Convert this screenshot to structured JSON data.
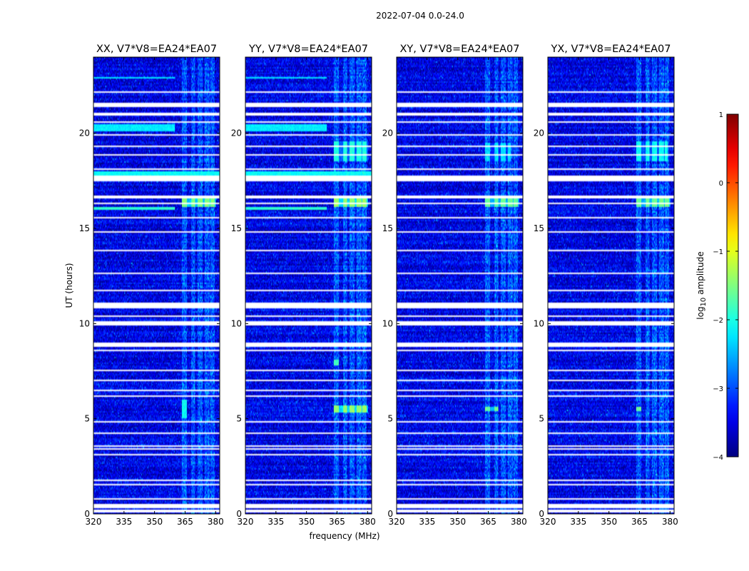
{
  "chart_data": {
    "type": "heatmap",
    "suptitle": "2022-07-04 0.0-24.0",
    "xlabel": "frequency (MHz)",
    "ylabel": "UT (hours)",
    "xlim": [
      320,
      382
    ],
    "ylim": [
      0,
      24
    ],
    "xticks": [
      320,
      335,
      350,
      365,
      380
    ],
    "yticks": [
      0,
      5,
      10,
      15,
      20
    ],
    "colorbar": {
      "label_prefix": "log",
      "label_sub": "10",
      "label_suffix": " amplitude",
      "range": [
        -4,
        1
      ],
      "ticks": [
        1,
        0,
        -1,
        -2,
        -3,
        -4
      ],
      "tick_labels": [
        "1",
        "0",
        "−1",
        "−2",
        "−3",
        "−4"
      ],
      "colormap": "jet"
    },
    "background_level": -3.5,
    "rfi_band_mhz": [
      [
        363.5,
        366
      ],
      [
        368,
        370
      ],
      [
        371,
        373.5
      ],
      [
        374.5,
        377
      ],
      [
        377.5,
        379.5
      ]
    ],
    "flagged_hours": [
      [
        0.1,
        0.2
      ],
      [
        0.3,
        0.55
      ],
      [
        0.75,
        0.85
      ],
      [
        1.5,
        1.58
      ],
      [
        1.75,
        1.8
      ],
      [
        2.0,
        2.06
      ],
      [
        3.1,
        3.18
      ],
      [
        3.4,
        3.48
      ],
      [
        3.55,
        3.6
      ],
      [
        4.2,
        4.25
      ],
      [
        4.8,
        4.88
      ],
      [
        5.6,
        5.65
      ],
      [
        6.15,
        6.25
      ],
      [
        6.45,
        6.5
      ],
      [
        7.0,
        7.05
      ],
      [
        7.5,
        7.55
      ],
      [
        8.55,
        8.62
      ],
      [
        8.75,
        9.0
      ],
      [
        9.9,
        10.1
      ],
      [
        10.35,
        10.45
      ],
      [
        10.8,
        11.1
      ],
      [
        11.7,
        11.78
      ],
      [
        12.2,
        12.25
      ],
      [
        12.6,
        12.66
      ],
      [
        13.8,
        13.88
      ],
      [
        14.3,
        14.36
      ],
      [
        14.8,
        14.85
      ],
      [
        15.2,
        15.26
      ],
      [
        15.55,
        15.6
      ],
      [
        16.3,
        16.35
      ],
      [
        16.6,
        16.7
      ],
      [
        17.5,
        17.75
      ],
      [
        18.05,
        18.12
      ],
      [
        18.85,
        18.9
      ],
      [
        19.3,
        19.36
      ],
      [
        19.9,
        19.98
      ],
      [
        20.55,
        20.62
      ],
      [
        20.95,
        21.05
      ],
      [
        21.4,
        21.6
      ],
      [
        22.1,
        22.18
      ],
      [
        22.4,
        22.46
      ],
      [
        22.7,
        22.76
      ],
      [
        23.3,
        23.36
      ]
    ],
    "panels": [
      {
        "title": "XX, V7*V8=EA24*EA07",
        "events": [
          {
            "t0": 16.15,
            "t1": 16.65,
            "f0": 363.5,
            "f1": 380,
            "level": -1.5,
            "kind": "band"
          },
          {
            "t0": 15.95,
            "t1": 16.15,
            "f0": 320,
            "f1": 360,
            "level": -1.9,
            "kind": "broad"
          },
          {
            "t0": 17.7,
            "t1": 18.0,
            "f0": 320,
            "f1": 382,
            "level": -2.1,
            "kind": "broad"
          },
          {
            "t0": 20.1,
            "t1": 20.5,
            "f0": 320,
            "f1": 360,
            "level": -2.2,
            "kind": "broad"
          },
          {
            "t0": 22.85,
            "t1": 22.95,
            "f0": 320,
            "f1": 360,
            "level": -2.2,
            "kind": "broad"
          },
          {
            "t0": 5.0,
            "t1": 6.0,
            "f0": 363.5,
            "f1": 366,
            "level": -2.1,
            "kind": "band"
          }
        ]
      },
      {
        "title": "YY, V7*V8=EA24*EA07",
        "events": [
          {
            "t0": 16.1,
            "t1": 16.65,
            "f0": 363.5,
            "f1": 380,
            "level": -1.4,
            "kind": "band"
          },
          {
            "t0": 18.5,
            "t1": 19.6,
            "f0": 363.5,
            "f1": 380,
            "level": -2.0,
            "kind": "band"
          },
          {
            "t0": 5.3,
            "t1": 5.7,
            "f0": 363.5,
            "f1": 380,
            "level": -1.4,
            "kind": "band"
          },
          {
            "t0": 7.8,
            "t1": 8.1,
            "f0": 363.5,
            "f1": 366,
            "level": -1.8,
            "kind": "band"
          },
          {
            "t0": 15.95,
            "t1": 16.15,
            "f0": 320,
            "f1": 360,
            "level": -1.9,
            "kind": "broad"
          },
          {
            "t0": 17.7,
            "t1": 18.0,
            "f0": 320,
            "f1": 382,
            "level": -2.1,
            "kind": "broad"
          },
          {
            "t0": 20.1,
            "t1": 20.5,
            "f0": 320,
            "f1": 360,
            "level": -2.2,
            "kind": "broad"
          },
          {
            "t0": 22.85,
            "t1": 22.95,
            "f0": 320,
            "f1": 360,
            "level": -2.2,
            "kind": "broad"
          }
        ]
      },
      {
        "title": "XY, V7*V8=EA24*EA07",
        "events": [
          {
            "t0": 16.15,
            "t1": 16.65,
            "f0": 363.5,
            "f1": 380,
            "level": -1.6,
            "kind": "band"
          },
          {
            "t0": 5.4,
            "t1": 5.65,
            "f0": 363.5,
            "f1": 370,
            "level": -1.6,
            "kind": "band"
          },
          {
            "t0": 18.5,
            "t1": 19.5,
            "f0": 363.5,
            "f1": 376,
            "level": -2.3,
            "kind": "band"
          }
        ]
      },
      {
        "title": "YX, V7*V8=EA24*EA07",
        "events": [
          {
            "t0": 16.15,
            "t1": 16.65,
            "f0": 363.5,
            "f1": 380,
            "level": -1.6,
            "kind": "band"
          },
          {
            "t0": 5.4,
            "t1": 5.65,
            "f0": 363.5,
            "f1": 366,
            "level": -1.6,
            "kind": "band"
          },
          {
            "t0": 18.5,
            "t1": 19.6,
            "f0": 363.5,
            "f1": 379,
            "level": -2.1,
            "kind": "band"
          }
        ]
      }
    ]
  }
}
